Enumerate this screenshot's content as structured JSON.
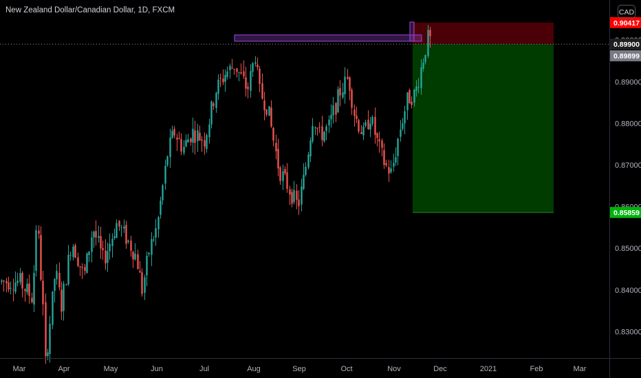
{
  "header": {
    "title": "New Zealand Dollar/Canadian Dollar, 1D, FXCM"
  },
  "currency_badge": "CAD",
  "chart_data": {
    "type": "candlestick",
    "symbol": "New Zealand Dollar/Canadian Dollar",
    "interval": "1D",
    "source": "FXCM",
    "x_tick_labels": [
      "Mar",
      "Apr",
      "May",
      "Jun",
      "Jul",
      "Aug",
      "Sep",
      "Oct",
      "Nov",
      "Dec",
      "2021",
      "Feb",
      "Mar"
    ],
    "y_tick_labels": [
      "0.83000",
      "0.84000",
      "0.85000",
      "0.86000",
      "0.87000",
      "0.88000",
      "0.89000",
      "0.90000"
    ],
    "ylim": [
      0.8205,
      0.9058
    ],
    "grid": false,
    "colors": {
      "up": "#26a69a",
      "down": "#ef5350",
      "stop_zone": "#4a0006",
      "target_zone": "#003b00",
      "highlight_box": "#8a3fc4",
      "stop_label": "#ff0000",
      "target_label": "#00b20b",
      "last_price_label": "#787b86",
      "entry_label": "#1e1e1e"
    },
    "price_labels": {
      "stop": "0.90417",
      "entry": "0.89900",
      "last": "0.89899",
      "target": "0.85859"
    },
    "position": {
      "side": "short",
      "entry": 0.899,
      "stop": 0.90417,
      "target": 0.85859
    },
    "resistance_zone": {
      "low": 0.8997,
      "high": 0.9012
    },
    "waypoints": [
      [
        "Mar 1",
        0.842
      ],
      [
        "Mar 10",
        0.838
      ],
      [
        "Mar 13",
        0.858
      ],
      [
        "Mar 18",
        0.832
      ],
      [
        "Mar 19",
        0.822
      ],
      [
        "Mar 26",
        0.845
      ],
      [
        "Mar 30",
        0.836
      ],
      [
        "Apr 6",
        0.852
      ],
      [
        "Apr 14",
        0.843
      ],
      [
        "Apr 20",
        0.855
      ],
      [
        "Apr 27",
        0.847
      ],
      [
        "May 5",
        0.856
      ],
      [
        "May 12",
        0.852
      ],
      [
        "May 18",
        0.848
      ],
      [
        "May 22",
        0.84
      ],
      [
        "May 27",
        0.85
      ],
      [
        "Jun 1",
        0.855
      ],
      [
        "Jun 8",
        0.873
      ],
      [
        "Jun 12",
        0.878
      ],
      [
        "Jun 18",
        0.874
      ],
      [
        "Jun 24",
        0.878
      ],
      [
        "Jul 1",
        0.876
      ],
      [
        "Jul 8",
        0.888
      ],
      [
        "Jul 14",
        0.892
      ],
      [
        "Jul 20",
        0.894
      ],
      [
        "Jul 28",
        0.888
      ],
      [
        "Aug 2",
        0.897
      ],
      [
        "Aug 4",
        0.888
      ],
      [
        "Aug 10",
        0.884
      ],
      [
        "Aug 18",
        0.869
      ],
      [
        "Aug 24",
        0.865
      ],
      [
        "Aug 31",
        0.86
      ],
      [
        "Sep 4",
        0.867
      ],
      [
        "Sep 10",
        0.882
      ],
      [
        "Sep 14",
        0.877
      ],
      [
        "Sep 20",
        0.879
      ],
      [
        "Sep 28",
        0.888
      ],
      [
        "Oct 2",
        0.891
      ],
      [
        "Oct 6",
        0.882
      ],
      [
        "Oct 12",
        0.877
      ],
      [
        "Oct 16",
        0.882
      ],
      [
        "Oct 22",
        0.874
      ],
      [
        "Oct 26",
        0.87
      ],
      [
        "Oct 30",
        0.868
      ],
      [
        "Nov 5",
        0.879
      ],
      [
        "Nov 10",
        0.886
      ],
      [
        "Nov 15",
        0.887
      ],
      [
        "Nov 20",
        0.895
      ],
      [
        "Nov 24",
        0.901
      ],
      [
        "Nov 26",
        0.899
      ]
    ]
  }
}
